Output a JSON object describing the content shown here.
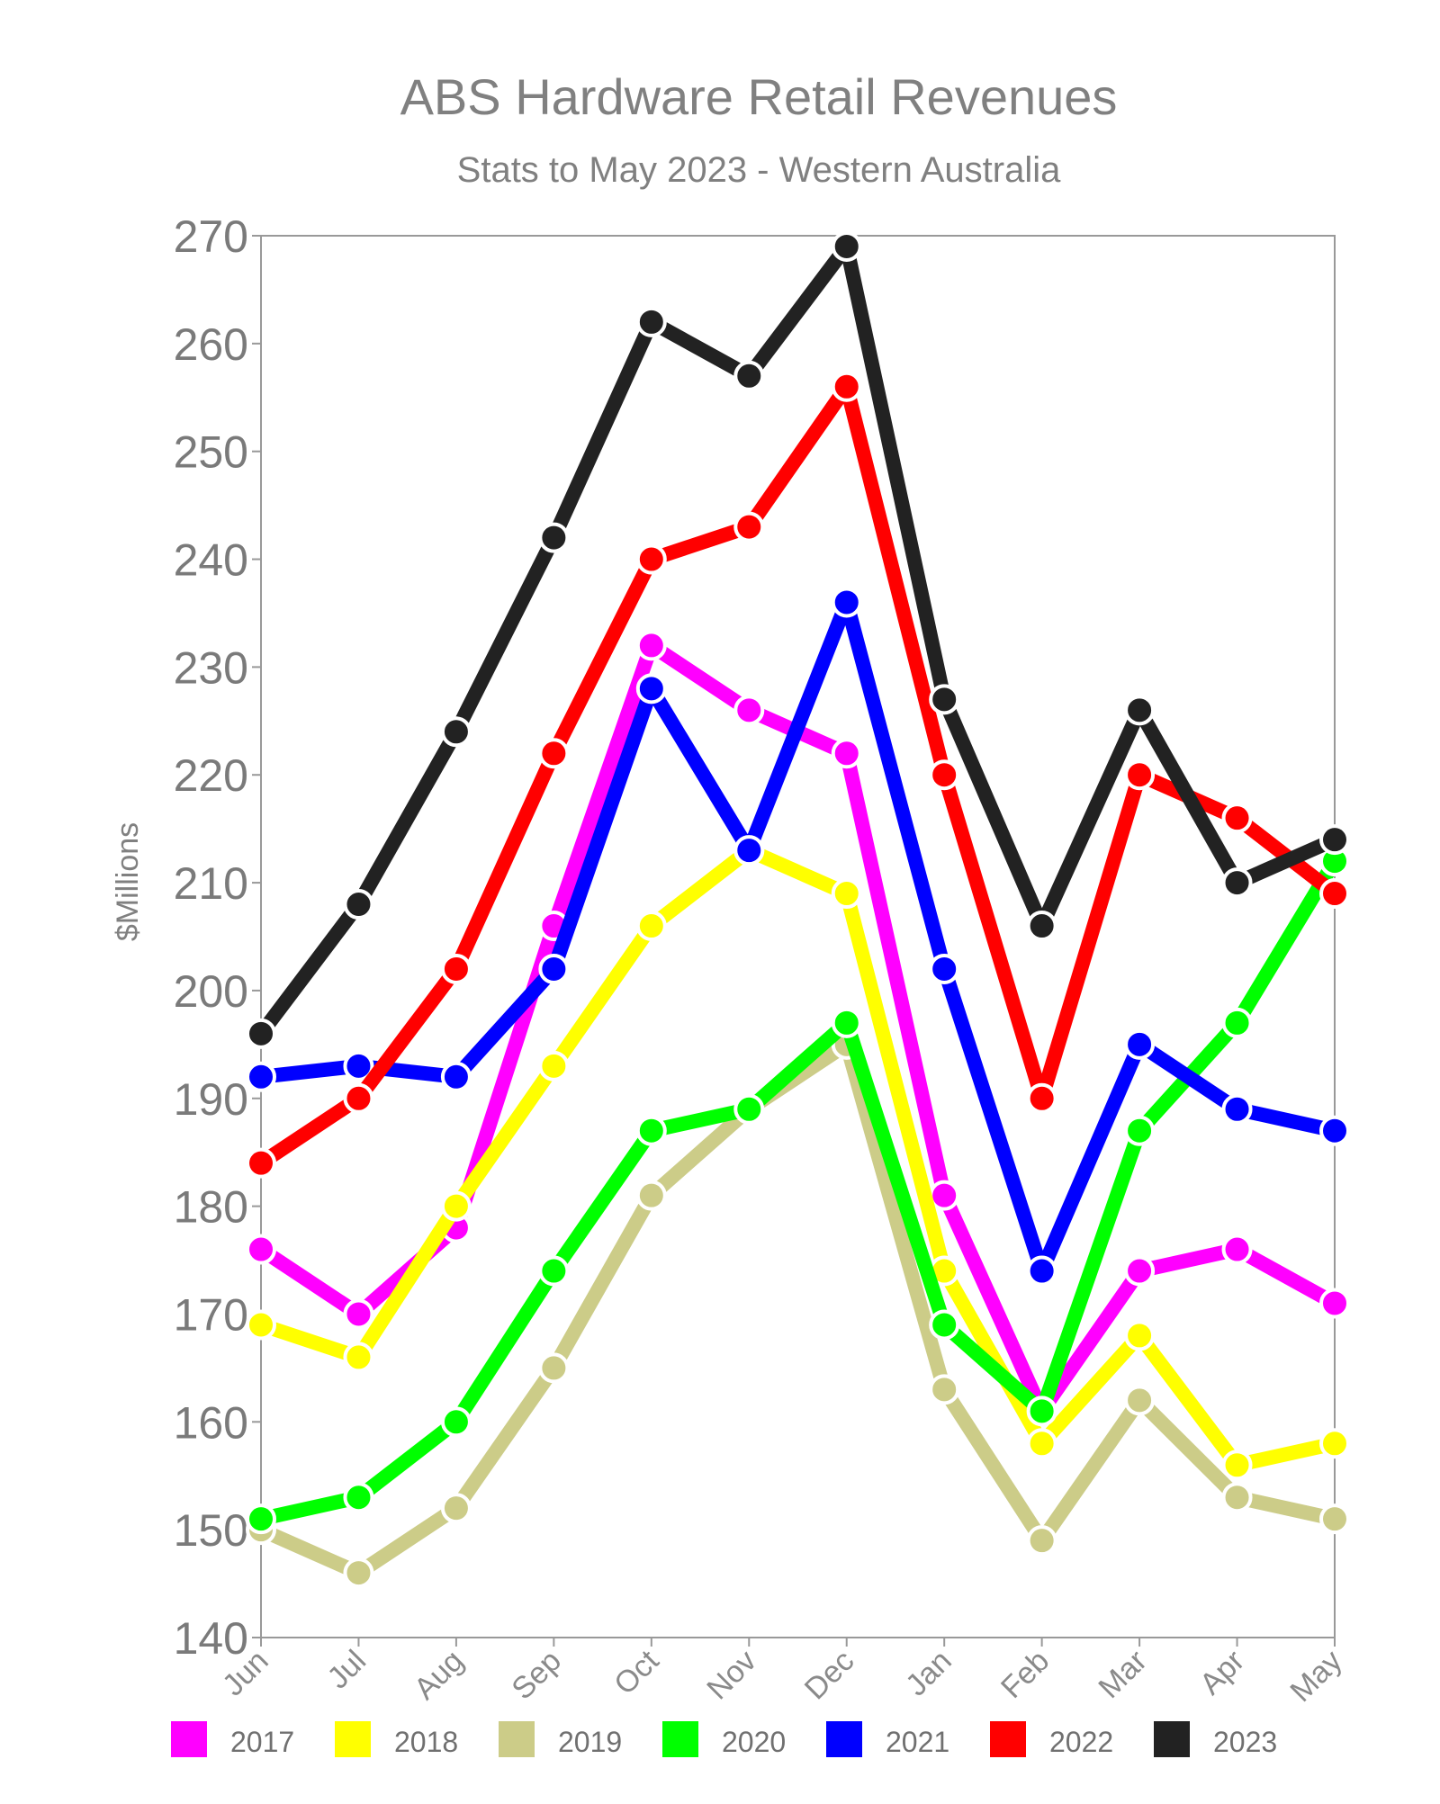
{
  "chart_data": {
    "type": "line",
    "title": "ABS Hardware Retail Revenues",
    "subtitle": "Stats to May 2023 - Western Australia",
    "xlabel": "",
    "ylabel": "$Millions",
    "ylim": [
      140,
      270
    ],
    "yticks": [
      "140",
      "150",
      "160",
      "170",
      "180",
      "190",
      "200",
      "210",
      "220",
      "230",
      "240",
      "250",
      "260",
      "270"
    ],
    "categories": [
      "Jun",
      "Jul",
      "Aug",
      "Sep",
      "Oct",
      "Nov",
      "Dec",
      "Jan",
      "Feb",
      "Mar",
      "Apr",
      "May"
    ],
    "grid": false,
    "legend_position": "bottom",
    "series": [
      {
        "name": "2017",
        "color": "#ff00ff",
        "values": [
          176,
          170,
          178,
          206,
          232,
          226,
          222,
          181,
          161,
          174,
          176,
          171
        ]
      },
      {
        "name": "2018",
        "color": "#ffff00",
        "values": [
          169,
          166,
          180,
          193,
          206,
          213,
          209,
          174,
          158,
          168,
          156,
          158
        ]
      },
      {
        "name": "2019",
        "color": "#cccc88",
        "values": [
          150,
          146,
          152,
          165,
          181,
          189,
          195,
          163,
          149,
          162,
          153,
          151
        ]
      },
      {
        "name": "2020",
        "color": "#00ff00",
        "values": [
          151,
          153,
          160,
          174,
          187,
          189,
          197,
          169,
          161,
          187,
          197,
          212
        ]
      },
      {
        "name": "2021",
        "color": "#0000ff",
        "values": [
          192,
          193,
          192,
          202,
          228,
          213,
          236,
          202,
          174,
          195,
          189,
          187
        ]
      },
      {
        "name": "2022",
        "color": "#ff0000",
        "values": [
          184,
          190,
          202,
          222,
          240,
          243,
          256,
          220,
          190,
          220,
          216,
          209
        ]
      },
      {
        "name": "2023",
        "color": "#222222",
        "values": [
          196,
          208,
          224,
          242,
          262,
          257,
          269,
          227,
          206,
          226,
          210,
          214
        ]
      }
    ]
  }
}
